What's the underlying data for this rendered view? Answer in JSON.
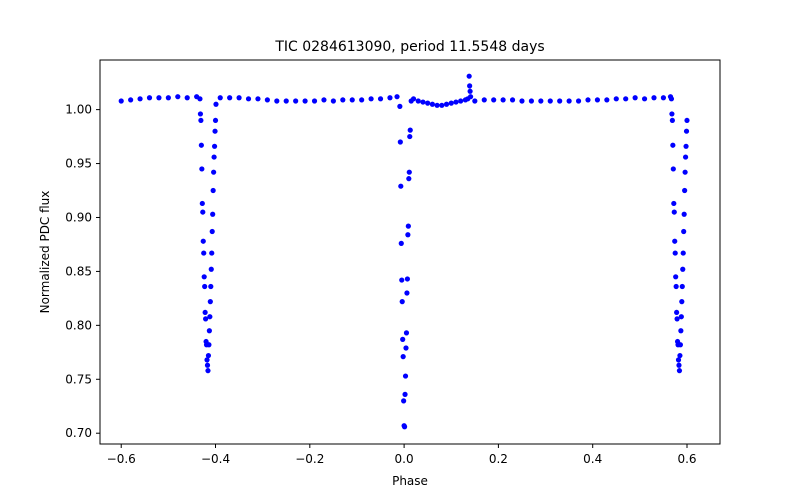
{
  "chart_data": {
    "type": "scatter",
    "title": "TIC 0284613090, period 11.5548 days",
    "xlabel": "Phase",
    "ylabel": "Normalized PDC flux",
    "xlim": [
      -0.645,
      0.67
    ],
    "ylim": [
      0.69,
      1.046
    ],
    "x_ticks": [
      -0.6,
      -0.4,
      -0.2,
      0.0,
      0.2,
      0.4,
      0.6
    ],
    "x_tick_labels": [
      "−0.6",
      "−0.4",
      "−0.2",
      "0.0",
      "0.2",
      "0.4",
      "0.6"
    ],
    "y_ticks": [
      0.7,
      0.75,
      0.8,
      0.85,
      0.9,
      0.95,
      1.0
    ],
    "y_tick_labels": [
      "0.70",
      "0.75",
      "0.80",
      "0.85",
      "0.90",
      "0.95",
      "1.00"
    ],
    "marker_color": "#0000ff",
    "series": [
      {
        "name": "PDC flux",
        "points": [
          [
            -0.6,
            1.008
          ],
          [
            -0.58,
            1.009
          ],
          [
            -0.56,
            1.01
          ],
          [
            -0.54,
            1.011
          ],
          [
            -0.52,
            1.011
          ],
          [
            -0.5,
            1.011
          ],
          [
            -0.48,
            1.012
          ],
          [
            -0.46,
            1.011
          ],
          [
            -0.44,
            1.012
          ],
          [
            -0.433,
            1.01
          ],
          [
            -0.432,
            0.996
          ],
          [
            -0.431,
            0.99
          ],
          [
            -0.43,
            0.967
          ],
          [
            -0.429,
            0.945
          ],
          [
            -0.428,
            0.913
          ],
          [
            -0.427,
            0.905
          ],
          [
            -0.426,
            0.878
          ],
          [
            -0.425,
            0.867
          ],
          [
            -0.424,
            0.845
          ],
          [
            -0.423,
            0.836
          ],
          [
            -0.422,
            0.812
          ],
          [
            -0.421,
            0.806
          ],
          [
            -0.42,
            0.785
          ],
          [
            -0.419,
            0.782
          ],
          [
            -0.418,
            0.768
          ],
          [
            -0.417,
            0.763
          ],
          [
            -0.416,
            0.758
          ],
          [
            -0.415,
            0.772
          ],
          [
            -0.414,
            0.782
          ],
          [
            -0.413,
            0.795
          ],
          [
            -0.412,
            0.808
          ],
          [
            -0.411,
            0.822
          ],
          [
            -0.41,
            0.836
          ],
          [
            -0.409,
            0.852
          ],
          [
            -0.408,
            0.867
          ],
          [
            -0.407,
            0.887
          ],
          [
            -0.406,
            0.903
          ],
          [
            -0.405,
            0.925
          ],
          [
            -0.404,
            0.942
          ],
          [
            -0.403,
            0.956
          ],
          [
            -0.402,
            0.966
          ],
          [
            -0.401,
            0.98
          ],
          [
            -0.4,
            0.99
          ],
          [
            -0.399,
            1.005
          ],
          [
            -0.39,
            1.011
          ],
          [
            -0.37,
            1.011
          ],
          [
            -0.35,
            1.011
          ],
          [
            -0.33,
            1.01
          ],
          [
            -0.31,
            1.01
          ],
          [
            -0.29,
            1.009
          ],
          [
            -0.27,
            1.008
          ],
          [
            -0.25,
            1.008
          ],
          [
            -0.23,
            1.008
          ],
          [
            -0.21,
            1.008
          ],
          [
            -0.19,
            1.008
          ],
          [
            -0.17,
            1.009
          ],
          [
            -0.15,
            1.008
          ],
          [
            -0.13,
            1.009
          ],
          [
            -0.11,
            1.009
          ],
          [
            -0.09,
            1.009
          ],
          [
            -0.07,
            1.01
          ],
          [
            -0.05,
            1.01
          ],
          [
            -0.03,
            1.011
          ],
          [
            -0.015,
            1.012
          ],
          [
            -0.009,
            1.003
          ],
          [
            -0.008,
            0.97
          ],
          [
            -0.007,
            0.929
          ],
          [
            -0.006,
            0.876
          ],
          [
            -0.005,
            0.842
          ],
          [
            -0.004,
            0.822
          ],
          [
            -0.003,
            0.787
          ],
          [
            -0.002,
            0.771
          ],
          [
            -0.001,
            0.73
          ],
          [
            0.0,
            0.707
          ],
          [
            0.001,
            0.706
          ],
          [
            0.002,
            0.736
          ],
          [
            0.003,
            0.753
          ],
          [
            0.004,
            0.779
          ],
          [
            0.005,
            0.793
          ],
          [
            0.006,
            0.83
          ],
          [
            0.007,
            0.843
          ],
          [
            0.008,
            0.884
          ],
          [
            0.009,
            0.892
          ],
          [
            0.01,
            0.936
          ],
          [
            0.011,
            0.942
          ],
          [
            0.012,
            0.975
          ],
          [
            0.013,
            0.981
          ],
          [
            0.015,
            1.008
          ],
          [
            0.02,
            1.01
          ],
          [
            0.03,
            1.008
          ],
          [
            0.04,
            1.007
          ],
          [
            0.05,
            1.006
          ],
          [
            0.06,
            1.005
          ],
          [
            0.07,
            1.004
          ],
          [
            0.08,
            1.004
          ],
          [
            0.09,
            1.005
          ],
          [
            0.1,
            1.006
          ],
          [
            0.11,
            1.007
          ],
          [
            0.12,
            1.008
          ],
          [
            0.13,
            1.009
          ],
          [
            0.135,
            1.01
          ],
          [
            0.138,
            1.031
          ],
          [
            0.139,
            1.022
          ],
          [
            0.14,
            1.017
          ],
          [
            0.141,
            1.012
          ],
          [
            0.15,
            1.008
          ],
          [
            0.17,
            1.009
          ],
          [
            0.19,
            1.009
          ],
          [
            0.21,
            1.009
          ],
          [
            0.23,
            1.009
          ],
          [
            0.25,
            1.008
          ],
          [
            0.27,
            1.008
          ],
          [
            0.29,
            1.008
          ],
          [
            0.31,
            1.008
          ],
          [
            0.33,
            1.008
          ],
          [
            0.35,
            1.008
          ],
          [
            0.37,
            1.008
          ],
          [
            0.39,
            1.009
          ],
          [
            0.41,
            1.009
          ],
          [
            0.43,
            1.009
          ],
          [
            0.45,
            1.01
          ],
          [
            0.47,
            1.01
          ],
          [
            0.49,
            1.011
          ],
          [
            0.51,
            1.01
          ],
          [
            0.53,
            1.011
          ],
          [
            0.55,
            1.011
          ],
          [
            0.565,
            1.012
          ],
          [
            0.567,
            1.01
          ],
          [
            0.568,
            0.996
          ],
          [
            0.569,
            0.99
          ],
          [
            0.57,
            0.967
          ],
          [
            0.571,
            0.945
          ],
          [
            0.572,
            0.913
          ],
          [
            0.573,
            0.905
          ],
          [
            0.574,
            0.878
          ],
          [
            0.575,
            0.867
          ],
          [
            0.576,
            0.845
          ],
          [
            0.577,
            0.836
          ],
          [
            0.578,
            0.812
          ],
          [
            0.579,
            0.806
          ],
          [
            0.58,
            0.785
          ],
          [
            0.581,
            0.782
          ],
          [
            0.582,
            0.768
          ],
          [
            0.583,
            0.763
          ],
          [
            0.584,
            0.758
          ],
          [
            0.585,
            0.772
          ],
          [
            0.586,
            0.782
          ],
          [
            0.587,
            0.795
          ],
          [
            0.588,
            0.808
          ],
          [
            0.589,
            0.822
          ],
          [
            0.59,
            0.836
          ],
          [
            0.591,
            0.852
          ],
          [
            0.592,
            0.867
          ],
          [
            0.593,
            0.887
          ],
          [
            0.594,
            0.903
          ],
          [
            0.595,
            0.925
          ],
          [
            0.596,
            0.942
          ],
          [
            0.597,
            0.956
          ],
          [
            0.598,
            0.966
          ],
          [
            0.599,
            0.98
          ],
          [
            0.6,
            0.99
          ]
        ]
      }
    ]
  }
}
